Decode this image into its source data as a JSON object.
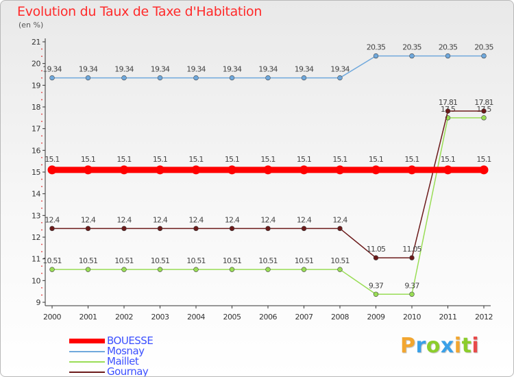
{
  "title": "Evolution du Taux de Taxe d'Habitation",
  "unit": "(en %)",
  "logo": {
    "letters": [
      "P",
      "r",
      "o",
      "x",
      "i",
      "t",
      "i"
    ],
    "colors": [
      "#f2a630",
      "#3aa0e8",
      "#8ccd2c",
      "#3aa0e8",
      "#f2a630",
      "#8ccd2c",
      "#e84a4a"
    ]
  },
  "chart_data": {
    "type": "line",
    "title": "Evolution du Taux de Taxe d'Habitation",
    "ylabel": "(en %)",
    "xlabel": "",
    "x": [
      "2000",
      "2001",
      "2002",
      "2003",
      "2004",
      "2005",
      "2006",
      "2007",
      "2008",
      "2009",
      "2010",
      "2011",
      "2012"
    ],
    "ylim": [
      9,
      21
    ],
    "yticks": [
      9,
      10,
      11,
      12,
      13,
      14,
      15,
      16,
      17,
      18,
      19,
      20,
      21
    ],
    "grid": false,
    "legend_position": "bottom-left",
    "series": [
      {
        "name": "BOUESSE",
        "color": "#ff0000",
        "emphasis": true,
        "values": [
          15.1,
          15.1,
          15.1,
          15.1,
          15.1,
          15.1,
          15.1,
          15.1,
          15.1,
          15.1,
          15.1,
          15.1,
          15.1
        ],
        "labels": [
          "15.1",
          "15.1",
          "15.1",
          "15.1",
          "15.1",
          "15.1",
          "15.1",
          "15.1",
          "15.1",
          "15.1",
          "15.1",
          "15.1",
          "15.1"
        ]
      },
      {
        "name": "Mosnay",
        "color": "#6fa8dc",
        "values": [
          19.34,
          19.34,
          19.34,
          19.34,
          19.34,
          19.34,
          19.34,
          19.34,
          19.34,
          20.35,
          20.35,
          20.35,
          20.35
        ],
        "labels": [
          "19.34",
          "19.34",
          "19.34",
          "19.34",
          "19.34",
          "19.34",
          "19.34",
          "19.34",
          "19.34",
          "20.35",
          "20.35",
          "20.35",
          "20.35"
        ]
      },
      {
        "name": "Maillet",
        "color": "#99dd55",
        "values": [
          10.51,
          10.51,
          10.51,
          10.51,
          10.51,
          10.51,
          10.51,
          10.51,
          10.51,
          9.37,
          9.37,
          17.5,
          17.5
        ],
        "labels": [
          "10.51",
          "10.51",
          "10.51",
          "10.51",
          "10.51",
          "10.51",
          "10.51",
          "10.51",
          "10.51",
          "9.37",
          "9.37",
          "17.5",
          "17.5"
        ]
      },
      {
        "name": "Gournay",
        "color": "#6b1a1a",
        "values": [
          12.4,
          12.4,
          12.4,
          12.4,
          12.4,
          12.4,
          12.4,
          12.4,
          12.4,
          11.05,
          11.05,
          17.81,
          17.81
        ],
        "labels": [
          "12.4",
          "12.4",
          "12.4",
          "12.4",
          "12.4",
          "12.4",
          "12.4",
          "12.4",
          "12.4",
          "11.05",
          "11.05",
          "17.81",
          "17.81"
        ]
      }
    ]
  }
}
